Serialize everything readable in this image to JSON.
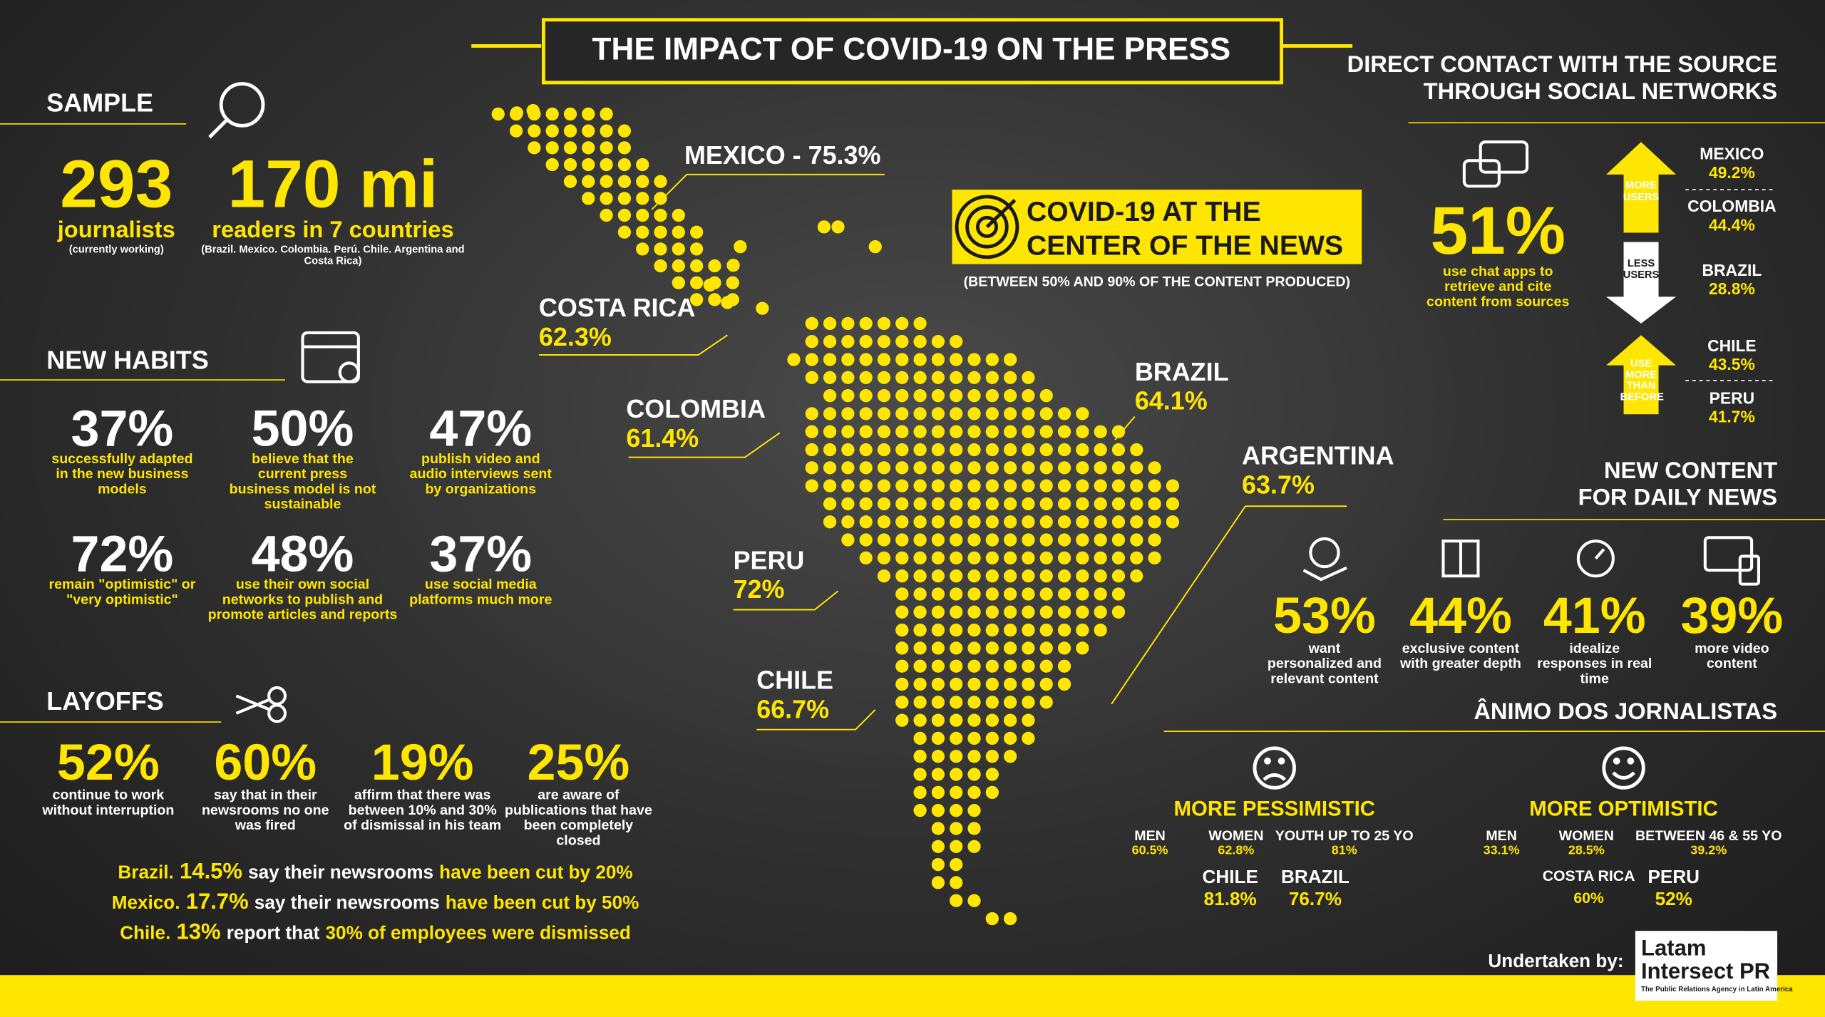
{
  "title": "THE IMPACT OF COVID-19 ON THE PRESS",
  "sample": {
    "heading": "SAMPLE",
    "items": [
      {
        "value": "293",
        "label": "journalists",
        "note": "(currently working)"
      },
      {
        "value": "170 mi",
        "label": "readers in 7 countries",
        "note": "(Brazil. Mexico. Colombia. Perú. Chile. Argentina and Costa Rica)"
      }
    ]
  },
  "new_habits": {
    "heading": "NEW HABITS",
    "items": [
      {
        "value": "37%",
        "text": "successfully adapted in the new business models"
      },
      {
        "value": "50%",
        "text": "believe that the current press business model is not sustainable"
      },
      {
        "value": "47%",
        "text": "publish video and audio interviews sent by organizations"
      },
      {
        "value": "72%",
        "text": "remain \"optimistic\" or \"very optimistic\""
      },
      {
        "value": "48%",
        "text": "use their own social networks to publish and promote articles and reports"
      },
      {
        "value": "37%",
        "text": "use social media platforms much more"
      }
    ]
  },
  "layoffs": {
    "heading": "LAYOFFS",
    "items": [
      {
        "value": "52%",
        "text": "continue to work without interruption"
      },
      {
        "value": "60%",
        "text": "say that in their newsrooms no one was fired"
      },
      {
        "value": "19%",
        "text": "affirm that there was between 10% and 30% of dismissal in his team"
      },
      {
        "value": "25%",
        "text": "are aware of publications that have been completely closed"
      }
    ],
    "notes": [
      [
        "Brazil.",
        "14.5%",
        "say their newsrooms",
        "have been cut by 20%"
      ],
      [
        "Mexico.",
        "17.7%",
        "say their newsrooms",
        "have been cut by 50%"
      ],
      [
        "Chile.",
        "13%",
        "report that",
        "30% of employees were dismissed"
      ]
    ]
  },
  "map": {
    "mexico": "MEXICO - 75.3%",
    "countries": [
      {
        "name": "COSTA RICA",
        "value": "62.3%"
      },
      {
        "name": "COLOMBIA",
        "value": "61.4%"
      },
      {
        "name": "PERU",
        "value": "72%"
      },
      {
        "name": "CHILE",
        "value": "66.7%"
      },
      {
        "name": "BRAZIL",
        "value": "64.1%"
      },
      {
        "name": "ARGENTINA",
        "value": "63.7%"
      }
    ]
  },
  "center_news": {
    "title": [
      "COVID-19 AT THE",
      "CENTER OF THE NEWS"
    ],
    "subtitle": "(BETWEEN 50% AND 90% OF THE CONTENT PRODUCED)"
  },
  "direct_contact": {
    "title": [
      "DIRECT CONTACT WITH THE SOURCE",
      "THROUGH SOCIAL NETWORKS"
    ],
    "value": "51%",
    "text": "use chat apps to retrieve and cite content from sources",
    "arrows": [
      "MORE USERS",
      "LESS USERS",
      "USE MORE THAN BEFORE"
    ],
    "countries": [
      {
        "name": "MEXICO",
        "value": "49.2%"
      },
      {
        "name": "COLOMBIA",
        "value": "44.4%"
      },
      {
        "name": "BRAZIL",
        "value": "28.8%"
      },
      {
        "name": "CHILE",
        "value": "43.5%"
      },
      {
        "name": "PERU",
        "value": "41.7%"
      }
    ]
  },
  "new_content": {
    "title": [
      "NEW CONTENT",
      "FOR DAILY NEWS"
    ],
    "items": [
      {
        "value": "53%",
        "text": "want personalized and relevant content"
      },
      {
        "value": "44%",
        "text": "exclusive content with greater depth"
      },
      {
        "value": "41%",
        "text": "idealize responses in real time"
      },
      {
        "value": "39%",
        "text": "more video content"
      }
    ]
  },
  "animo": {
    "title": "ÂNIMO DOS JORNALISTAS",
    "pessimistic": {
      "title": "MORE PESSIMISTIC",
      "groups": [
        {
          "label": "MEN",
          "value": "60.5%"
        },
        {
          "label": "WOMEN",
          "value": "62.8%"
        },
        {
          "label": "YOUTH UP TO 25 YO",
          "value": "81%"
        }
      ],
      "countries": [
        {
          "name": "CHILE",
          "value": "81.8%"
        },
        {
          "name": "BRAZIL",
          "value": "76.7%"
        }
      ]
    },
    "optimistic": {
      "title": "MORE OPTIMISTIC",
      "groups": [
        {
          "label": "MEN",
          "value": "33.1%"
        },
        {
          "label": "WOMEN",
          "value": "28.5%"
        },
        {
          "label": "BETWEEN 46 & 55 YO",
          "value": "39.2%"
        }
      ],
      "countries": [
        {
          "name": "COSTA RICA",
          "value": "60%"
        },
        {
          "name": "PERU",
          "value": "52%"
        }
      ]
    }
  },
  "footer": {
    "credit": "Undertaken by:",
    "logo": [
      "Latam",
      "Intersect PR"
    ],
    "tagline": "The Public Relations Agency in Latin America"
  }
}
